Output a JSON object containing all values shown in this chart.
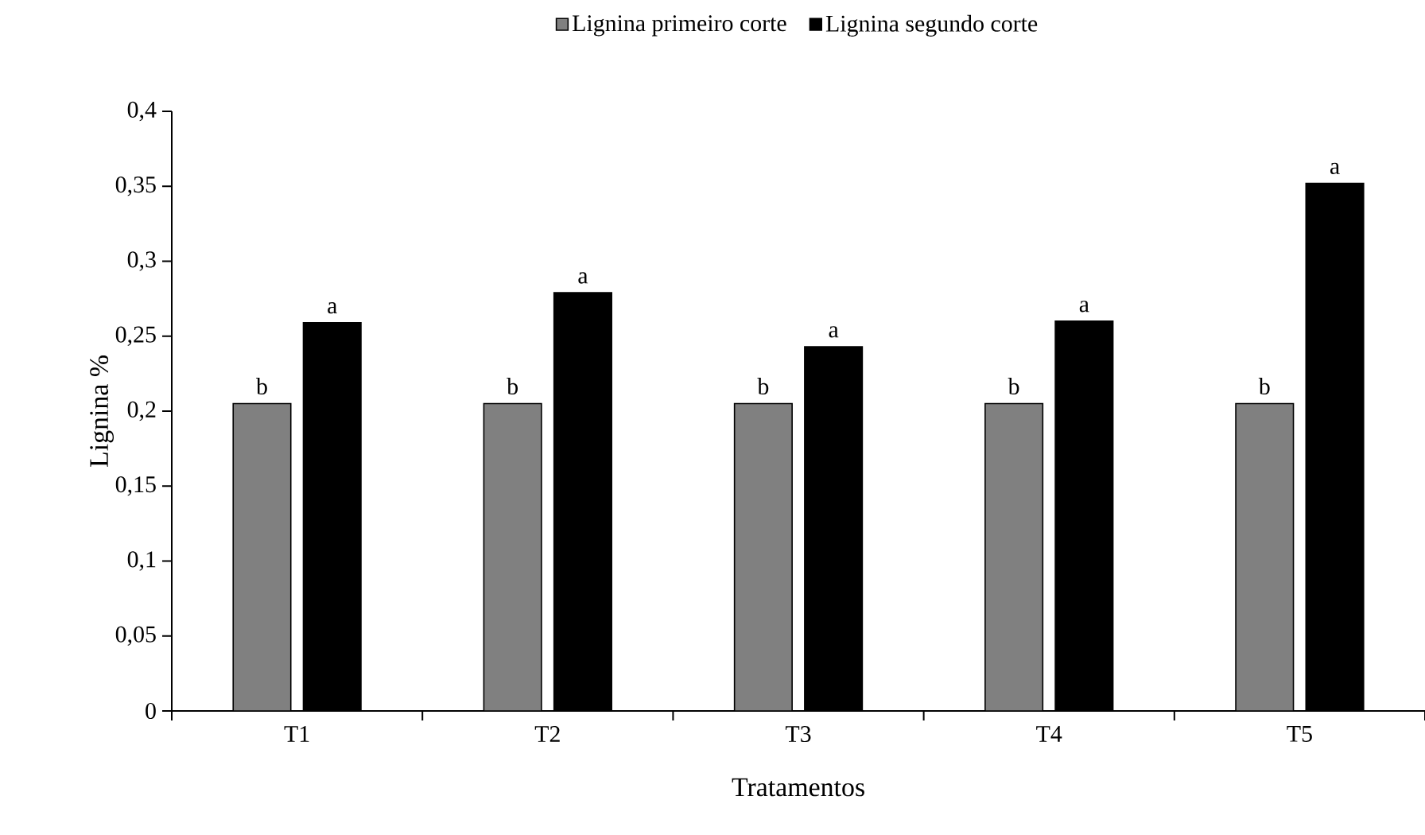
{
  "chart_data": {
    "type": "bar",
    "xlabel": "Tratamentos",
    "ylabel": "Lignina %",
    "categories": [
      "T1",
      "T2",
      "T3",
      "T4",
      "T5"
    ],
    "series": [
      {
        "name": "Lignina primeiro corte",
        "color": "#808080",
        "values": [
          0.205,
          0.205,
          0.205,
          0.205,
          0.205
        ],
        "value_labels": [
          "b",
          "b",
          "b",
          "b",
          "b"
        ]
      },
      {
        "name": "Lignina segundo corte",
        "color": "#000000",
        "values": [
          0.259,
          0.279,
          0.243,
          0.26,
          0.352
        ],
        "value_labels": [
          "a",
          "a",
          "a",
          "a",
          "a"
        ]
      }
    ],
    "ylim": [
      0,
      0.4
    ],
    "yticks": [
      0,
      {
        "value": 0.05,
        "label": "0,05"
      },
      {
        "value": 0.1,
        "label": "0,1"
      },
      {
        "value": 0.15,
        "label": "0,15"
      },
      {
        "value": 0.2,
        "label": "0,2"
      },
      {
        "value": 0.25,
        "label": "0,25"
      },
      {
        "value": 0.3,
        "label": "0,3"
      },
      {
        "value": 0.35,
        "label": "0,35"
      },
      {
        "value": 0.4,
        "label": "0,4"
      }
    ],
    "grid": false,
    "legend": "top"
  }
}
